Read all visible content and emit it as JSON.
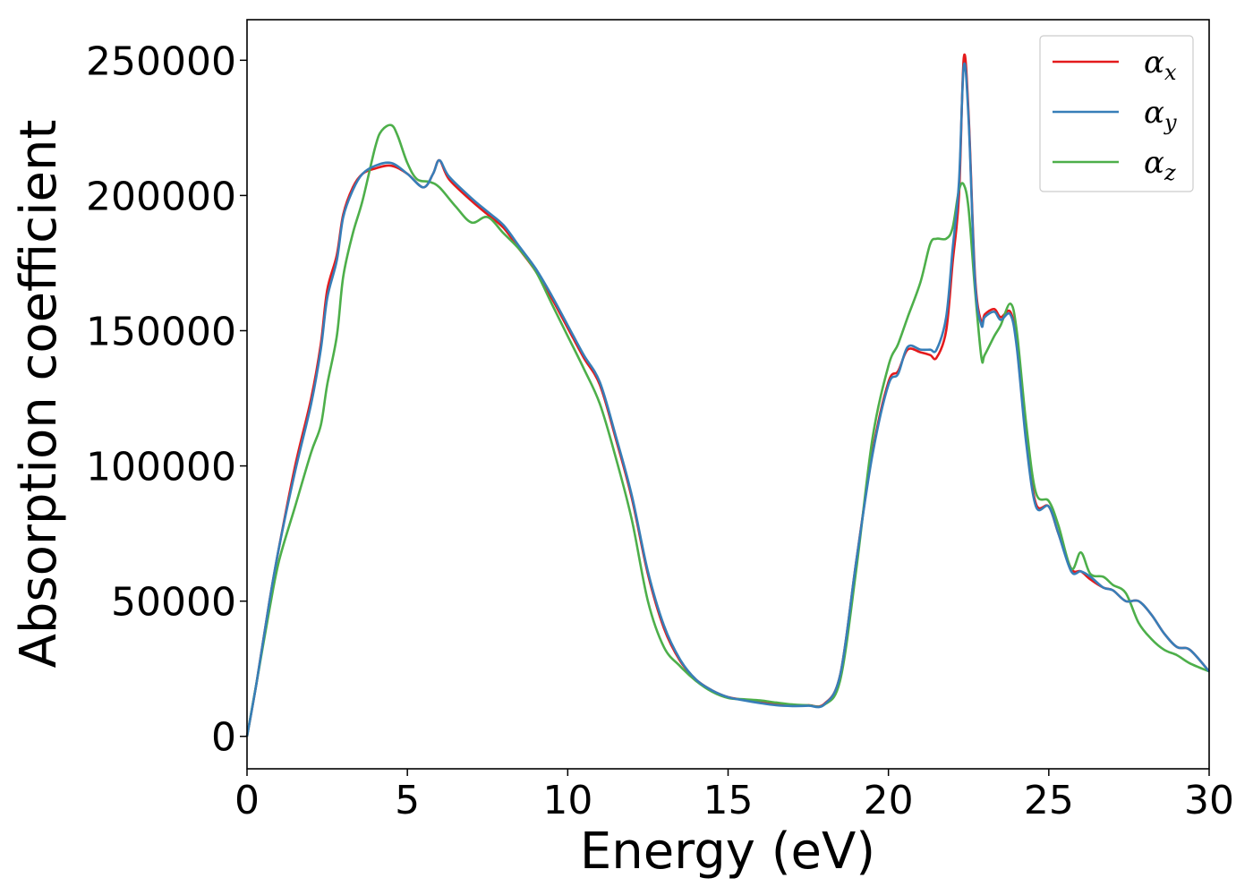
{
  "chart_data": {
    "type": "line",
    "title": "",
    "xlabel": "Energy (eV)",
    "ylabel": "Absorption coefficient",
    "xlim": [
      0,
      30
    ],
    "ylim": [
      -12000,
      265000
    ],
    "xticks": [
      0,
      5,
      10,
      15,
      20,
      25,
      30
    ],
    "yticks": [
      0,
      50000,
      100000,
      150000,
      200000,
      250000
    ],
    "grid": false,
    "legend_position": "top-right",
    "series": [
      {
        "name": "α",
        "subscript": "x",
        "color": "#e41a1c",
        "x": [
          0,
          0.3,
          0.7,
          1.0,
          1.5,
          2.0,
          2.3,
          2.5,
          2.8,
          3.0,
          3.3,
          3.6,
          4.0,
          4.5,
          5.0,
          5.5,
          5.8,
          6.0,
          6.3,
          7.0,
          7.5,
          8.0,
          8.5,
          9.0,
          9.5,
          10.0,
          10.5,
          11.0,
          11.5,
          12.0,
          12.5,
          13.0,
          13.5,
          14.0,
          14.5,
          15.0,
          15.5,
          16.0,
          16.5,
          17.0,
          17.5,
          18.0,
          18.5,
          19.0,
          19.5,
          20.0,
          20.3,
          20.6,
          21.0,
          21.3,
          21.5,
          21.8,
          22.0,
          22.2,
          22.35,
          22.5,
          22.7,
          22.9,
          23.0,
          23.3,
          23.5,
          23.8,
          24.0,
          24.3,
          24.6,
          25.0,
          25.3,
          25.7,
          26.0,
          26.3,
          26.7,
          27.0,
          27.4,
          27.8,
          28.2,
          28.6,
          29.0,
          29.4,
          30.0
        ],
        "values": [
          0,
          20000,
          50000,
          70000,
          100000,
          125000,
          145000,
          165000,
          178000,
          193000,
          203000,
          208000,
          210000,
          211000,
          208000,
          203000,
          208000,
          213000,
          206000,
          198000,
          193000,
          188000,
          180000,
          172000,
          162000,
          151000,
          140000,
          130000,
          110000,
          88000,
          60000,
          40000,
          28000,
          21000,
          17000,
          14500,
          13500,
          12500,
          11800,
          11500,
          11500,
          12000,
          23000,
          65000,
          105000,
          131000,
          135000,
          143000,
          142000,
          141000,
          140000,
          150000,
          175000,
          200000,
          251000,
          230000,
          170000,
          153000,
          156000,
          158000,
          155000,
          157000,
          145000,
          110000,
          86000,
          85000,
          75000,
          62000,
          61000,
          58000,
          55000,
          54000,
          50000,
          50000,
          45000,
          38000,
          33000,
          32000,
          24000
        ]
      },
      {
        "name": "α",
        "subscript": "y",
        "color": "#377eb8",
        "x": [
          0,
          0.3,
          0.7,
          1.0,
          1.5,
          2.0,
          2.3,
          2.5,
          2.8,
          3.0,
          3.3,
          3.6,
          4.0,
          4.5,
          5.0,
          5.5,
          5.8,
          6.0,
          6.3,
          7.0,
          7.5,
          8.0,
          8.5,
          9.0,
          9.5,
          10.0,
          10.5,
          11.0,
          11.5,
          12.0,
          12.5,
          13.0,
          13.5,
          14.0,
          14.5,
          15.0,
          15.5,
          16.0,
          16.5,
          17.0,
          17.5,
          18.0,
          18.5,
          19.0,
          19.5,
          20.0,
          20.3,
          20.6,
          21.0,
          21.3,
          21.5,
          21.8,
          22.0,
          22.2,
          22.35,
          22.5,
          22.7,
          22.9,
          23.0,
          23.3,
          23.5,
          23.8,
          24.0,
          24.3,
          24.6,
          25.0,
          25.3,
          25.7,
          26.0,
          26.3,
          26.7,
          27.0,
          27.4,
          27.8,
          28.2,
          28.6,
          29.0,
          29.4,
          30.0
        ],
        "values": [
          0,
          20000,
          50000,
          70000,
          98000,
          123000,
          143000,
          162000,
          176000,
          192000,
          202000,
          208000,
          211000,
          212000,
          208000,
          203000,
          208000,
          213000,
          207000,
          199000,
          194000,
          189000,
          181000,
          173000,
          163000,
          152000,
          141000,
          131000,
          111000,
          89000,
          61000,
          41000,
          28500,
          21000,
          17000,
          14500,
          13300,
          12300,
          11500,
          11200,
          11300,
          11800,
          23000,
          65000,
          104000,
          130000,
          134000,
          144000,
          143000,
          143000,
          143000,
          155000,
          180000,
          205000,
          248000,
          228000,
          168000,
          152000,
          155000,
          157000,
          154000,
          156000,
          144000,
          108000,
          85000,
          85000,
          75000,
          61000,
          61000,
          59000,
          55000,
          54000,
          50000,
          50000,
          45000,
          38000,
          33000,
          32000,
          24000
        ]
      },
      {
        "name": "α",
        "subscript": "z",
        "color": "#4daf4a",
        "x": [
          0,
          0.3,
          0.7,
          1.0,
          1.5,
          2.0,
          2.3,
          2.5,
          2.8,
          3.0,
          3.3,
          3.6,
          4.0,
          4.2,
          4.5,
          4.7,
          5.0,
          5.3,
          5.7,
          6.0,
          6.5,
          7.0,
          7.5,
          8.0,
          8.5,
          9.0,
          9.5,
          10.0,
          10.5,
          11.0,
          11.5,
          12.0,
          12.5,
          13.0,
          13.5,
          14.0,
          14.5,
          15.0,
          15.5,
          16.0,
          16.5,
          17.0,
          17.5,
          18.0,
          18.5,
          19.0,
          19.5,
          20.0,
          20.3,
          20.6,
          21.0,
          21.3,
          21.5,
          21.8,
          22.0,
          22.2,
          22.35,
          22.5,
          22.7,
          22.9,
          23.0,
          23.3,
          23.5,
          23.8,
          24.0,
          24.3,
          24.6,
          25.0,
          25.3,
          25.7,
          26.0,
          26.3,
          26.7,
          27.0,
          27.4,
          27.8,
          28.2,
          28.6,
          29.0,
          29.4,
          30.0
        ],
        "values": [
          0,
          20000,
          47000,
          65000,
          85000,
          105000,
          115000,
          130000,
          148000,
          170000,
          186000,
          198000,
          218000,
          224000,
          226000,
          222000,
          212000,
          206000,
          205000,
          203000,
          196000,
          190000,
          192000,
          186000,
          180000,
          172000,
          160000,
          148000,
          136000,
          123000,
          103000,
          80000,
          50000,
          33000,
          26000,
          20500,
          16500,
          14200,
          13700,
          13300,
          12500,
          11800,
          11500,
          11700,
          21000,
          62000,
          110000,
          137000,
          145000,
          155000,
          168000,
          182000,
          184000,
          184000,
          188000,
          202000,
          204000,
          195000,
          165000,
          140000,
          141000,
          148000,
          152000,
          160000,
          150000,
          115000,
          90000,
          87000,
          78000,
          62000,
          68000,
          60000,
          59000,
          56000,
          53000,
          42000,
          36000,
          32000,
          30000,
          27000,
          24000
        ]
      }
    ]
  }
}
